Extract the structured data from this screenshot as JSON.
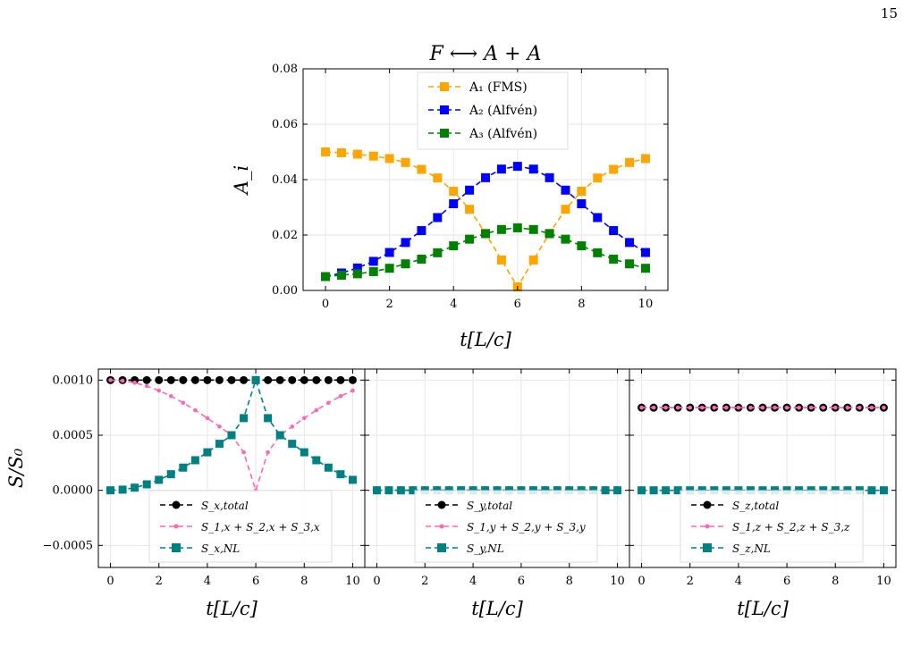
{
  "page_number": "15",
  "chart_data": [
    {
      "type": "line",
      "title": "F ⟷ A + A",
      "xlabel": "t[L/c]",
      "ylabel": "A_i",
      "xlim": [
        -0.7,
        10.7
      ],
      "ylim": [
        0,
        0.08
      ],
      "xticks": [
        0,
        2,
        4,
        6,
        8,
        10
      ],
      "yticks": [
        0.0,
        0.02,
        0.04,
        0.06,
        0.08
      ],
      "xtick_labels": [
        "0",
        "2",
        "4",
        "6",
        "8",
        "10"
      ],
      "ytick_labels": [
        "0.00",
        "0.02",
        "0.04",
        "0.06",
        "0.08"
      ],
      "grid": true,
      "legend": "top-center",
      "x": [
        0,
        0.5,
        1,
        1.5,
        2,
        2.5,
        3,
        3.5,
        4,
        4.5,
        5,
        5.5,
        6,
        6.5,
        7,
        7.5,
        8,
        8.5,
        9,
        9.5,
        10
      ],
      "series": [
        {
          "name": "A₁ (FMS)",
          "color": "#FFA500",
          "marker": "square",
          "style": "dashed",
          "values": [
            0.05,
            0.0497,
            0.0492,
            0.0485,
            0.0476,
            0.0462,
            0.0437,
            0.0406,
            0.0358,
            0.0293,
            0.0206,
            0.011,
            0.0013,
            0.011,
            0.0206,
            0.0293,
            0.0358,
            0.0406,
            0.0437,
            0.0462,
            0.0476
          ]
        },
        {
          "name": "A₂ (Alfvén)",
          "color": "#0000FF",
          "marker": "square",
          "style": "dashed",
          "values": [
            0.005,
            0.0063,
            0.0081,
            0.0105,
            0.0137,
            0.0173,
            0.0216,
            0.0263,
            0.0313,
            0.0362,
            0.0407,
            0.0438,
            0.0448,
            0.0438,
            0.0407,
            0.0362,
            0.0313,
            0.0263,
            0.0216,
            0.0173,
            0.0137
          ]
        },
        {
          "name": "A₃ (Alfvén)",
          "color": "#008000",
          "marker": "square",
          "style": "dashed",
          "values": [
            0.005,
            0.0055,
            0.006,
            0.0068,
            0.008,
            0.0096,
            0.0113,
            0.0136,
            0.0161,
            0.0185,
            0.0205,
            0.022,
            0.0226,
            0.022,
            0.0205,
            0.0185,
            0.0161,
            0.0136,
            0.0113,
            0.0096,
            0.008
          ]
        }
      ]
    },
    {
      "type": "line",
      "xlabel": "t[L/c]",
      "ylabel": "S/S₀",
      "xlim": [
        -0.5,
        10.5
      ],
      "ylim": [
        -0.0007,
        0.0011
      ],
      "xticks": [
        0,
        2,
        4,
        6,
        8,
        10
      ],
      "yticks": [
        -0.0005,
        0.0,
        0.0005,
        0.001
      ],
      "xtick_labels": [
        "0",
        "2",
        "4",
        "6",
        "8",
        "10"
      ],
      "ytick_labels": [
        "−0.0005",
        "0.0000",
        "0.0005",
        "0.0010"
      ],
      "grid": true,
      "legend": "lower-center",
      "x": [
        0,
        0.5,
        1,
        1.5,
        2,
        2.5,
        3,
        3.5,
        4,
        4.5,
        5,
        5.5,
        6,
        6.5,
        7,
        7.5,
        8,
        8.5,
        9,
        9.5,
        10
      ],
      "series": [
        {
          "name": "S_x,total",
          "color": "#000000",
          "marker": "circle",
          "style": "dashed",
          "values": [
            0.001,
            0.001,
            0.001,
            0.001,
            0.001,
            0.001,
            0.001,
            0.001,
            0.001,
            0.001,
            0.001,
            0.001,
            0.001,
            0.001,
            0.001,
            0.001,
            0.001,
            0.001,
            0.001,
            0.001,
            0.001
          ]
        },
        {
          "name": "S_1,x + S_2,x + S_3,x",
          "color": "#FF69B4",
          "marker": "dot",
          "style": "dashed",
          "values": [
            0.001,
            0.000994,
            0.000976,
            0.000946,
            0.000905,
            0.000854,
            0.000794,
            0.000727,
            0.000655,
            0.000578,
            0.0005,
            0.000345,
            0.0,
            0.000345,
            0.0005,
            0.000578,
            0.000655,
            0.000727,
            0.000794,
            0.000854,
            0.000905
          ]
        },
        {
          "name": "S_x,NL",
          "color": "#008080",
          "marker": "square",
          "style": "dashed",
          "values": [
            0.0,
            6e-06,
            2.4e-05,
            5.4e-05,
            9.5e-05,
            0.000146,
            0.000206,
            0.000273,
            0.000345,
            0.000422,
            0.0005,
            0.000655,
            0.001,
            0.000655,
            0.0005,
            0.000422,
            0.000345,
            0.000273,
            0.000206,
            0.000146,
            9.5e-05
          ]
        }
      ]
    },
    {
      "type": "line",
      "xlabel": "t[L/c]",
      "xlim": [
        -0.5,
        10.5
      ],
      "ylim": [
        -0.0007,
        0.0011
      ],
      "xticks": [
        0,
        2,
        4,
        6,
        8,
        10
      ],
      "xtick_labels": [
        "0",
        "2",
        "4",
        "6",
        "8",
        "10"
      ],
      "grid": true,
      "legend": "lower-center",
      "x": [
        0,
        0.5,
        1,
        1.5,
        2,
        2.5,
        3,
        3.5,
        4,
        4.5,
        5,
        5.5,
        6,
        6.5,
        7,
        7.5,
        8,
        8.5,
        9,
        9.5,
        10
      ],
      "series": [
        {
          "name": "S_y,total",
          "color": "#000000",
          "marker": "circle",
          "style": "dashed",
          "values": [
            0,
            0,
            0,
            0,
            0,
            0,
            0,
            0,
            0,
            0,
            0,
            0,
            0,
            0,
            0,
            0,
            0,
            0,
            0,
            0,
            0
          ]
        },
        {
          "name": "S_1,y + S_2,y + S_3,y",
          "color": "#FF69B4",
          "marker": "dot",
          "style": "dashed",
          "values": [
            0,
            0,
            0,
            0,
            0,
            0,
            0,
            0,
            0,
            0,
            0,
            0,
            0,
            0,
            0,
            0,
            0,
            0,
            0,
            0,
            0
          ]
        },
        {
          "name": "S_y,NL",
          "color": "#008080",
          "marker": "square",
          "style": "dashed",
          "values": [
            0,
            0,
            0,
            0,
            0,
            0,
            0,
            0,
            0,
            0,
            0,
            0,
            0,
            0,
            0,
            0,
            0,
            0,
            0,
            0,
            0
          ]
        }
      ]
    },
    {
      "type": "line",
      "xlabel": "t[L/c]",
      "xlim": [
        -0.5,
        10.5
      ],
      "ylim": [
        -0.0007,
        0.0011
      ],
      "xticks": [
        0,
        2,
        4,
        6,
        8,
        10
      ],
      "xtick_labels": [
        "0",
        "2",
        "4",
        "6",
        "8",
        "10"
      ],
      "grid": true,
      "legend": "lower-center",
      "x": [
        0,
        0.5,
        1,
        1.5,
        2,
        2.5,
        3,
        3.5,
        4,
        4.5,
        5,
        5.5,
        6,
        6.5,
        7,
        7.5,
        8,
        8.5,
        9,
        9.5,
        10
      ],
      "series": [
        {
          "name": "S_z,total",
          "color": "#000000",
          "marker": "circle",
          "style": "dashed",
          "values": [
            0.00075,
            0.00075,
            0.00075,
            0.00075,
            0.00075,
            0.00075,
            0.00075,
            0.00075,
            0.00075,
            0.00075,
            0.00075,
            0.00075,
            0.00075,
            0.00075,
            0.00075,
            0.00075,
            0.00075,
            0.00075,
            0.00075,
            0.00075,
            0.00075
          ]
        },
        {
          "name": "S_1,z + S_2,z + S_3,z",
          "color": "#FF69B4",
          "marker": "dot",
          "style": "dashed",
          "values": [
            0.00075,
            0.00075,
            0.00075,
            0.00075,
            0.00075,
            0.00075,
            0.00075,
            0.00075,
            0.00075,
            0.00075,
            0.00075,
            0.00075,
            0.00075,
            0.00075,
            0.00075,
            0.00075,
            0.00075,
            0.00075,
            0.00075,
            0.00075,
            0.00075
          ]
        },
        {
          "name": "S_z,NL",
          "color": "#008080",
          "marker": "square",
          "style": "dashed",
          "values": [
            0,
            0,
            0,
            0,
            0,
            0,
            0,
            0,
            0,
            0,
            0,
            0,
            0,
            0,
            0,
            0,
            0,
            0,
            0,
            0,
            0
          ]
        }
      ]
    }
  ]
}
